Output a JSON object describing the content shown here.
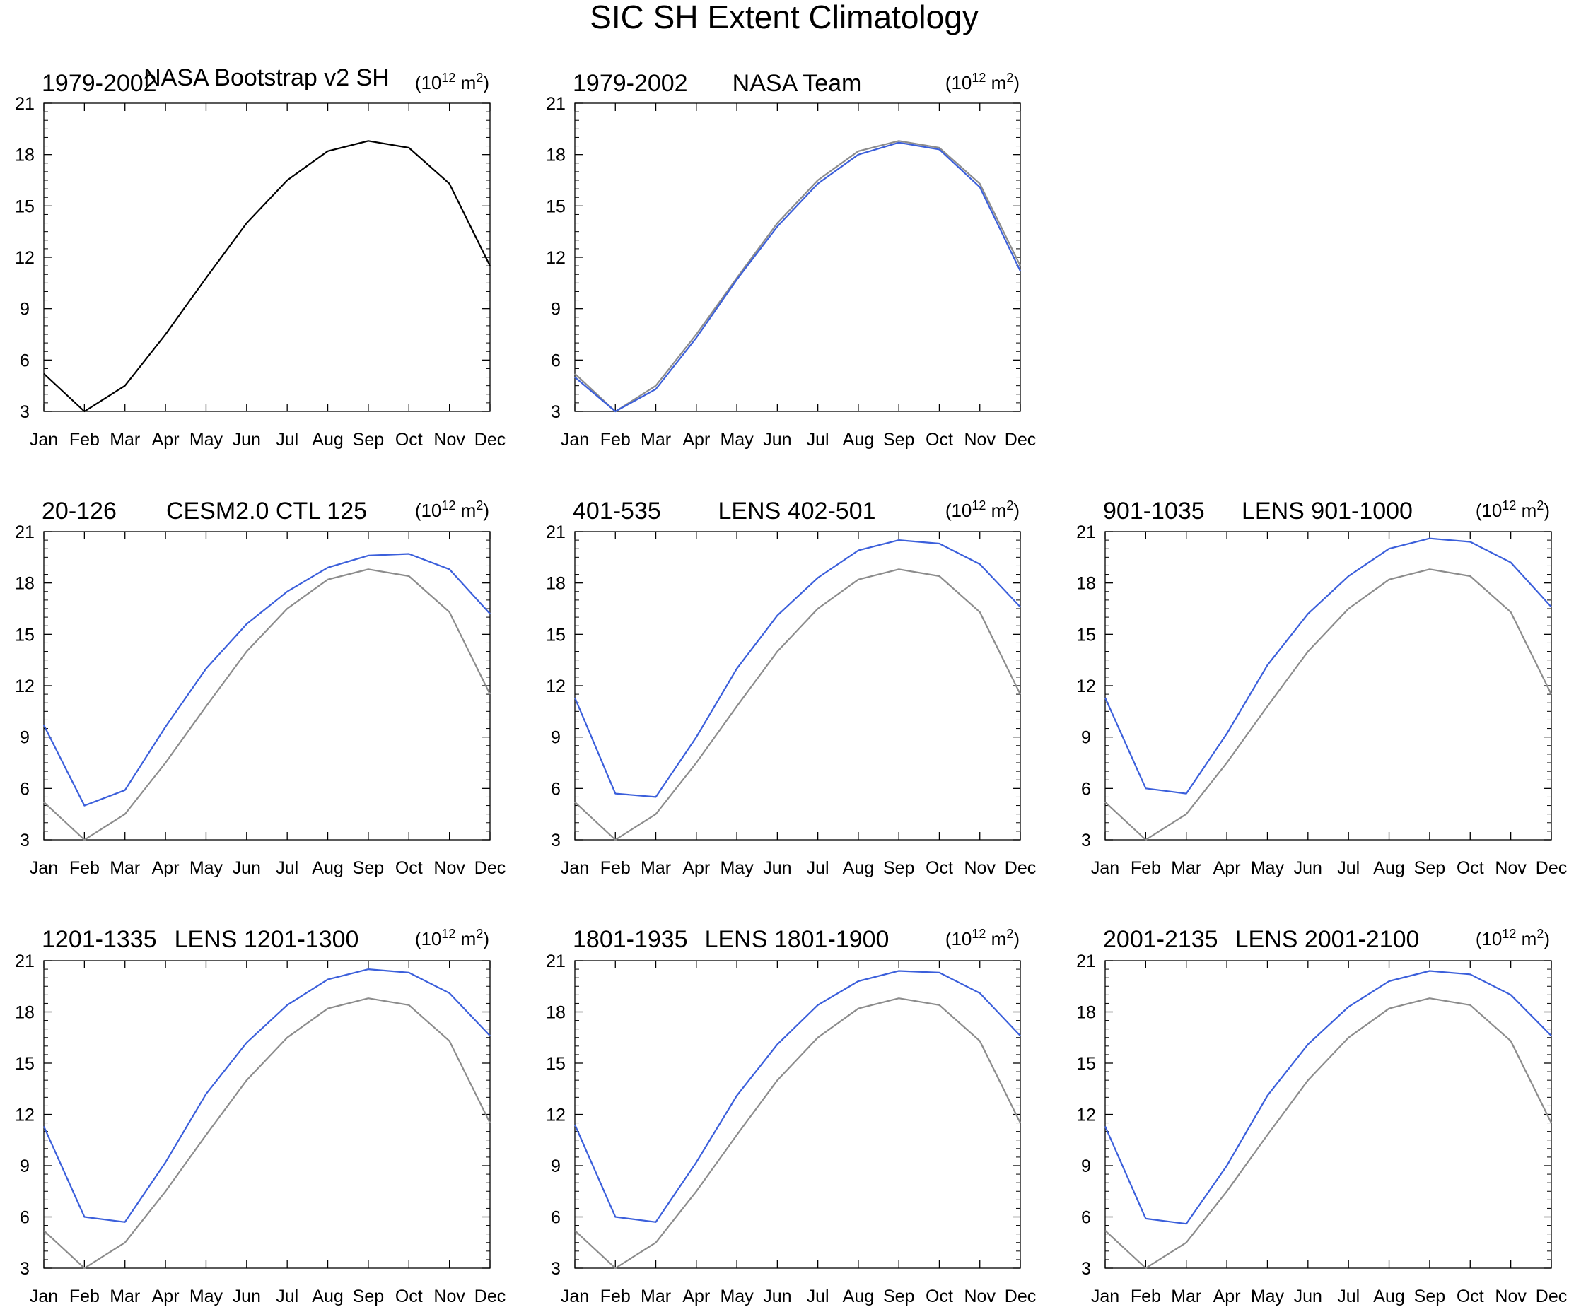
{
  "title": "SIC SH Extent Climatology",
  "units_prefix": "(10",
  "units_exponent": "12",
  "units_mid": " m",
  "units_square": "2",
  "units_suffix": ")",
  "colors": {
    "observation": "#000000",
    "model": "#3b5fdb",
    "observation_reference": "#8c8c8c",
    "axis": "#000000"
  },
  "chart_data": [
    {
      "type": "line",
      "left_title": "1979-2002",
      "center_title": "NASA Bootstrap v2 SH",
      "categories": [
        "Jan",
        "Feb",
        "Mar",
        "Apr",
        "May",
        "Jun",
        "Jul",
        "Aug",
        "Sep",
        "Oct",
        "Nov",
        "Dec"
      ],
      "ylim": [
        3,
        21
      ],
      "yticks": [
        3,
        6,
        9,
        12,
        15,
        18,
        21
      ],
      "series": [
        {
          "name": "NASA Bootstrap v2 SH",
          "color": "#000000",
          "values": [
            5.2,
            3.0,
            4.5,
            7.5,
            10.8,
            14.0,
            16.5,
            18.2,
            18.8,
            18.4,
            16.3,
            11.5
          ]
        }
      ]
    },
    {
      "type": "line",
      "left_title": "1979-2002",
      "center_title": "NASA Team",
      "categories": [
        "Jan",
        "Feb",
        "Mar",
        "Apr",
        "May",
        "Jun",
        "Jul",
        "Aug",
        "Sep",
        "Oct",
        "Nov",
        "Dec"
      ],
      "ylim": [
        3,
        21
      ],
      "yticks": [
        3,
        6,
        9,
        12,
        15,
        18,
        21
      ],
      "series": [
        {
          "name": "NASA Bootstrap v2 SH",
          "color": "#8c8c8c",
          "values": [
            5.2,
            3.0,
            4.5,
            7.5,
            10.8,
            14.0,
            16.5,
            18.2,
            18.8,
            18.4,
            16.3,
            11.5
          ]
        },
        {
          "name": "NASA Team",
          "color": "#3b5fdb",
          "values": [
            5.0,
            3.0,
            4.3,
            7.3,
            10.7,
            13.8,
            16.3,
            18.0,
            18.7,
            18.3,
            16.1,
            11.2
          ]
        }
      ]
    },
    {
      "type": "line",
      "left_title": "20-126",
      "center_title": "CESM2.0 CTL 125",
      "categories": [
        "Jan",
        "Feb",
        "Mar",
        "Apr",
        "May",
        "Jun",
        "Jul",
        "Aug",
        "Sep",
        "Oct",
        "Nov",
        "Dec"
      ],
      "ylim": [
        3,
        21
      ],
      "yticks": [
        3,
        6,
        9,
        12,
        15,
        18,
        21
      ],
      "series": [
        {
          "name": "NASA Bootstrap v2 SH",
          "color": "#8c8c8c",
          "values": [
            5.2,
            3.0,
            4.5,
            7.5,
            10.8,
            14.0,
            16.5,
            18.2,
            18.8,
            18.4,
            16.3,
            11.5
          ]
        },
        {
          "name": "CESM2.0 CTL 125",
          "color": "#3b5fdb",
          "values": [
            9.7,
            5.0,
            5.9,
            9.6,
            13.0,
            15.6,
            17.5,
            18.9,
            19.6,
            19.7,
            18.8,
            16.2
          ]
        }
      ]
    },
    {
      "type": "line",
      "left_title": "401-535",
      "center_title": "LENS 402-501",
      "categories": [
        "Jan",
        "Feb",
        "Mar",
        "Apr",
        "May",
        "Jun",
        "Jul",
        "Aug",
        "Sep",
        "Oct",
        "Nov",
        "Dec"
      ],
      "ylim": [
        3,
        21
      ],
      "yticks": [
        3,
        6,
        9,
        12,
        15,
        18,
        21
      ],
      "series": [
        {
          "name": "NASA Bootstrap v2 SH",
          "color": "#8c8c8c",
          "values": [
            5.2,
            3.0,
            4.5,
            7.5,
            10.8,
            14.0,
            16.5,
            18.2,
            18.8,
            18.4,
            16.3,
            11.5
          ]
        },
        {
          "name": "LENS 402-501",
          "color": "#3b5fdb",
          "values": [
            11.3,
            5.7,
            5.5,
            9.0,
            13.0,
            16.1,
            18.3,
            19.9,
            20.5,
            20.3,
            19.1,
            16.6
          ]
        }
      ]
    },
    {
      "type": "line",
      "left_title": "901-1035",
      "center_title": "LENS 901-1000",
      "categories": [
        "Jan",
        "Feb",
        "Mar",
        "Apr",
        "May",
        "Jun",
        "Jul",
        "Aug",
        "Sep",
        "Oct",
        "Nov",
        "Dec"
      ],
      "ylim": [
        3,
        21
      ],
      "yticks": [
        3,
        6,
        9,
        12,
        15,
        18,
        21
      ],
      "series": [
        {
          "name": "NASA Bootstrap v2 SH",
          "color": "#8c8c8c",
          "values": [
            5.2,
            3.0,
            4.5,
            7.5,
            10.8,
            14.0,
            16.5,
            18.2,
            18.8,
            18.4,
            16.3,
            11.5
          ]
        },
        {
          "name": "LENS 901-1000",
          "color": "#3b5fdb",
          "values": [
            11.3,
            6.0,
            5.7,
            9.2,
            13.2,
            16.2,
            18.4,
            20.0,
            20.6,
            20.4,
            19.2,
            16.6
          ]
        }
      ]
    },
    {
      "type": "line",
      "left_title": "1201-1335",
      "center_title": "LENS 1201-1300",
      "categories": [
        "Jan",
        "Feb",
        "Mar",
        "Apr",
        "May",
        "Jun",
        "Jul",
        "Aug",
        "Sep",
        "Oct",
        "Nov",
        "Dec"
      ],
      "ylim": [
        3,
        21
      ],
      "yticks": [
        3,
        6,
        9,
        12,
        15,
        18,
        21
      ],
      "series": [
        {
          "name": "NASA Bootstrap v2 SH",
          "color": "#8c8c8c",
          "values": [
            5.2,
            3.0,
            4.5,
            7.5,
            10.8,
            14.0,
            16.5,
            18.2,
            18.8,
            18.4,
            16.3,
            11.5
          ]
        },
        {
          "name": "LENS 1201-1300",
          "color": "#3b5fdb",
          "values": [
            11.3,
            6.0,
            5.7,
            9.2,
            13.2,
            16.2,
            18.4,
            19.9,
            20.5,
            20.3,
            19.1,
            16.6
          ]
        }
      ]
    },
    {
      "type": "line",
      "left_title": "1801-1935",
      "center_title": "LENS 1801-1900",
      "categories": [
        "Jan",
        "Feb",
        "Mar",
        "Apr",
        "May",
        "Jun",
        "Jul",
        "Aug",
        "Sep",
        "Oct",
        "Nov",
        "Dec"
      ],
      "ylim": [
        3,
        21
      ],
      "yticks": [
        3,
        6,
        9,
        12,
        15,
        18,
        21
      ],
      "series": [
        {
          "name": "NASA Bootstrap v2 SH",
          "color": "#8c8c8c",
          "values": [
            5.2,
            3.0,
            4.5,
            7.5,
            10.8,
            14.0,
            16.5,
            18.2,
            18.8,
            18.4,
            16.3,
            11.5
          ]
        },
        {
          "name": "LENS 1801-1900",
          "color": "#3b5fdb",
          "values": [
            11.4,
            6.0,
            5.7,
            9.2,
            13.1,
            16.1,
            18.4,
            19.8,
            20.4,
            20.3,
            19.1,
            16.6
          ]
        }
      ]
    },
    {
      "type": "line",
      "left_title": "2001-2135",
      "center_title": "LENS 2001-2100",
      "categories": [
        "Jan",
        "Feb",
        "Mar",
        "Apr",
        "May",
        "Jun",
        "Jul",
        "Aug",
        "Sep",
        "Oct",
        "Nov",
        "Dec"
      ],
      "ylim": [
        3,
        21
      ],
      "yticks": [
        3,
        6,
        9,
        12,
        15,
        18,
        21
      ],
      "series": [
        {
          "name": "NASA Bootstrap v2 SH",
          "color": "#8c8c8c",
          "values": [
            5.2,
            3.0,
            4.5,
            7.5,
            10.8,
            14.0,
            16.5,
            18.2,
            18.8,
            18.4,
            16.3,
            11.5
          ]
        },
        {
          "name": "LENS 2001-2100",
          "color": "#3b5fdb",
          "values": [
            11.3,
            5.9,
            5.6,
            9.0,
            13.1,
            16.1,
            18.3,
            19.8,
            20.4,
            20.2,
            19.0,
            16.6
          ]
        }
      ]
    }
  ]
}
